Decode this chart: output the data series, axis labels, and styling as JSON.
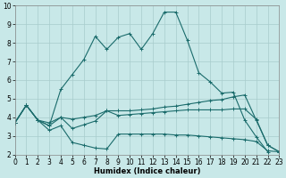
{
  "xlabel": "Humidex (Indice chaleur)",
  "xlim": [
    0,
    23
  ],
  "ylim": [
    2,
    10
  ],
  "yticks": [
    2,
    3,
    4,
    5,
    6,
    7,
    8,
    9,
    10
  ],
  "xticks": [
    0,
    1,
    2,
    3,
    4,
    5,
    6,
    7,
    8,
    9,
    10,
    11,
    12,
    13,
    14,
    15,
    16,
    17,
    18,
    19,
    20,
    21,
    22,
    23
  ],
  "bg_color": "#c8e8e8",
  "grid_color": "#a8cccc",
  "line_color": "#1a6b6b",
  "lines": [
    {
      "x": [
        0,
        1,
        2,
        3,
        4,
        5,
        6,
        7,
        8,
        9,
        10,
        11,
        12,
        13,
        14,
        15,
        16,
        17,
        18,
        19,
        20,
        21,
        22
      ],
      "y": [
        3.7,
        4.65,
        3.85,
        3.55,
        5.5,
        6.3,
        7.1,
        8.35,
        7.65,
        8.3,
        8.5,
        7.65,
        8.5,
        9.65,
        9.65,
        8.15,
        6.4,
        5.9,
        5.3,
        5.35,
        3.85,
        2.95,
        2.15
      ]
    },
    {
      "x": [
        0,
        1,
        2,
        3,
        4,
        5,
        6,
        7,
        8,
        9,
        10,
        11,
        12,
        13,
        14,
        15,
        16,
        17,
        18,
        19,
        20,
        21,
        22,
        23
      ],
      "y": [
        3.7,
        4.65,
        3.85,
        3.7,
        4.0,
        3.9,
        4.0,
        4.1,
        4.35,
        4.35,
        4.35,
        4.4,
        4.45,
        4.55,
        4.6,
        4.7,
        4.8,
        4.9,
        4.95,
        5.1,
        5.2,
        3.85,
        2.5,
        2.15
      ]
    },
    {
      "x": [
        0,
        1,
        2,
        3,
        4,
        5,
        6,
        7,
        8,
        9,
        10,
        11,
        12,
        13,
        14,
        15,
        16,
        17,
        18,
        19,
        20,
        21,
        22,
        23
      ],
      "y": [
        3.7,
        4.65,
        3.85,
        3.55,
        4.0,
        3.4,
        3.6,
        3.8,
        4.35,
        4.1,
        4.15,
        4.2,
        4.25,
        4.3,
        4.35,
        4.4,
        4.4,
        4.4,
        4.4,
        4.45,
        4.45,
        3.9,
        2.5,
        2.15
      ]
    },
    {
      "x": [
        0,
        1,
        2,
        3,
        4,
        5,
        6,
        7,
        8,
        9,
        10,
        11,
        12,
        13,
        14,
        15,
        16,
        17,
        18,
        19,
        20,
        21,
        22,
        23
      ],
      "y": [
        3.7,
        4.65,
        3.85,
        3.3,
        3.55,
        2.65,
        2.5,
        2.35,
        2.3,
        3.1,
        3.1,
        3.1,
        3.1,
        3.1,
        3.05,
        3.05,
        3.0,
        2.95,
        2.9,
        2.85,
        2.8,
        2.7,
        2.2,
        2.15
      ]
    }
  ]
}
